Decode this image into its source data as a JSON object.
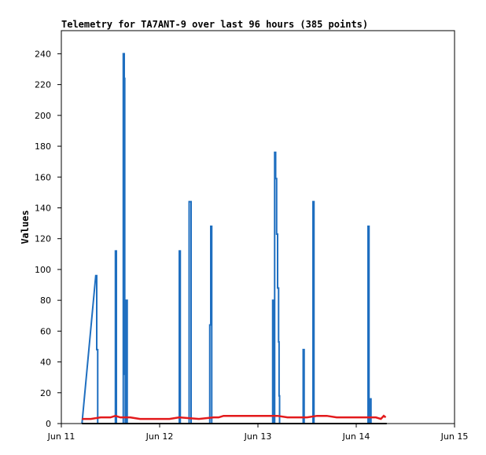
{
  "chart_data": {
    "type": "line",
    "title": "Telemetry for TA7ANT-9 over last 96 hours (385 points)",
    "xlabel": "",
    "ylabel": "Values",
    "xlim": [
      "Jun 11",
      "Jun 15"
    ],
    "ylim": [
      0,
      255
    ],
    "x_ticks": [
      "Jun 11",
      "Jun 12",
      "Jun 13",
      "Jun 14",
      "Jun 15"
    ],
    "y_ticks": [
      0,
      20,
      40,
      60,
      80,
      100,
      120,
      140,
      160,
      180,
      200,
      220,
      240
    ],
    "grid": false,
    "legend": "none",
    "colors": {
      "blue": "#1f6fc0",
      "red": "#e31a1c",
      "black": "#000000"
    },
    "series": [
      {
        "color": "#1f6fc0",
        "points": [
          [
            11.21,
            0
          ],
          [
            11.35,
            96
          ],
          [
            11.36,
            96
          ],
          [
            11.36,
            48
          ],
          [
            11.37,
            48
          ],
          [
            11.37,
            0
          ],
          [
            11.55,
            0
          ],
          [
            11.55,
            112
          ],
          [
            11.56,
            112
          ],
          [
            11.56,
            0
          ],
          [
            11.63,
            0
          ],
          [
            11.63,
            240
          ],
          [
            11.64,
            240
          ],
          [
            11.64,
            224
          ],
          [
            11.645,
            224
          ],
          [
            11.645,
            32
          ],
          [
            11.65,
            32
          ],
          [
            11.65,
            0
          ],
          [
            11.66,
            0
          ],
          [
            11.66,
            80
          ],
          [
            11.67,
            80
          ],
          [
            11.67,
            0
          ],
          [
            12.2,
            0
          ],
          [
            12.2,
            112
          ],
          [
            12.21,
            112
          ],
          [
            12.21,
            0
          ],
          [
            12.3,
            0
          ],
          [
            12.3,
            144
          ],
          [
            12.32,
            144
          ],
          [
            12.32,
            0
          ],
          [
            12.51,
            0
          ],
          [
            12.51,
            64
          ],
          [
            12.52,
            64
          ],
          [
            12.52,
            128
          ],
          [
            12.53,
            128
          ],
          [
            12.53,
            0
          ],
          [
            13.15,
            0
          ],
          [
            13.15,
            80
          ],
          [
            13.16,
            80
          ],
          [
            13.16,
            0
          ],
          [
            13.17,
            0
          ],
          [
            13.17,
            176
          ],
          [
            13.18,
            176
          ],
          [
            13.18,
            159
          ],
          [
            13.19,
            159
          ],
          [
            13.19,
            123
          ],
          [
            13.2,
            123
          ],
          [
            13.2,
            88
          ],
          [
            13.21,
            88
          ],
          [
            13.21,
            53
          ],
          [
            13.215,
            53
          ],
          [
            13.215,
            18
          ],
          [
            13.22,
            18
          ],
          [
            13.22,
            0
          ],
          [
            13.46,
            0
          ],
          [
            13.46,
            48
          ],
          [
            13.47,
            48
          ],
          [
            13.47,
            0
          ],
          [
            13.56,
            0
          ],
          [
            13.56,
            144
          ],
          [
            13.57,
            144
          ],
          [
            13.57,
            0
          ],
          [
            14.12,
            0
          ],
          [
            14.12,
            128
          ],
          [
            14.13,
            128
          ],
          [
            14.13,
            0
          ],
          [
            14.14,
            0
          ],
          [
            14.14,
            16
          ],
          [
            14.15,
            16
          ],
          [
            14.15,
            0
          ]
        ]
      },
      {
        "color": "#e31a1c",
        "points": [
          [
            11.21,
            3
          ],
          [
            11.3,
            3
          ],
          [
            11.4,
            4
          ],
          [
            11.5,
            4
          ],
          [
            11.55,
            5
          ],
          [
            11.6,
            4
          ],
          [
            11.7,
            4
          ],
          [
            11.8,
            3
          ],
          [
            12.0,
            3
          ],
          [
            12.1,
            3
          ],
          [
            12.2,
            4
          ],
          [
            12.4,
            3
          ],
          [
            12.55,
            4
          ],
          [
            12.6,
            4
          ],
          [
            12.65,
            5
          ],
          [
            12.8,
            5
          ],
          [
            13.0,
            5
          ],
          [
            13.2,
            5
          ],
          [
            13.3,
            4
          ],
          [
            13.5,
            4
          ],
          [
            13.6,
            5
          ],
          [
            13.7,
            5
          ],
          [
            13.8,
            4
          ],
          [
            14.0,
            4
          ],
          [
            14.1,
            4
          ],
          [
            14.2,
            4
          ],
          [
            14.25,
            3
          ],
          [
            14.28,
            5
          ],
          [
            14.3,
            4
          ]
        ]
      },
      {
        "color": "#000000",
        "points": [
          [
            11.21,
            0
          ],
          [
            14.31,
            0
          ]
        ]
      }
    ]
  }
}
